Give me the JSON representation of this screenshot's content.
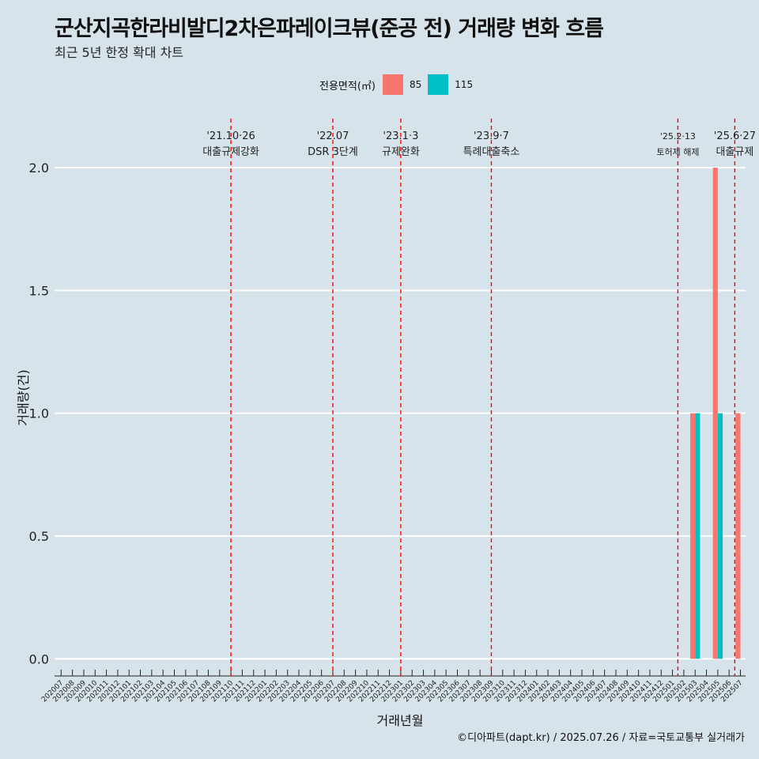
{
  "title": "군산지곡한라비발디2차은파레이크뷰(준공 전) 거래량 변화 흐름",
  "subtitle": "최근 5년 한정 확대 차트",
  "caption": "©디아파트(dapt.kr) / 2025.07.26 / 자료=국토교통부 실거래가",
  "legend": {
    "title": "전용면적(㎡)",
    "items": [
      {
        "label": "85",
        "color": "#f8766d"
      },
      {
        "label": "115",
        "color": "#00bfc4"
      }
    ]
  },
  "chart_data": {
    "type": "bar",
    "title": "군산지곡한라비발디2차은파레이크뷰(준공 전) 거래량 변화 흐름",
    "xlabel": "거래년월",
    "ylabel": "거래량(건)",
    "ylim": [
      -0.07,
      2.2
    ],
    "yticks": [
      0.0,
      0.5,
      1.0,
      1.5,
      2.0
    ],
    "ytick_labels": [
      "0.0",
      "0.5",
      "1.0",
      "1.5",
      "2.0"
    ],
    "grid": "horizontal",
    "legend_position": "top",
    "categories": [
      "202007",
      "202008",
      "202009",
      "202010",
      "202011",
      "202012",
      "202101",
      "202102",
      "202103",
      "202104",
      "202105",
      "202106",
      "202107",
      "202108",
      "202109",
      "202110",
      "202111",
      "202112",
      "202201",
      "202202",
      "202203",
      "202204",
      "202205",
      "202206",
      "202207",
      "202208",
      "202209",
      "202210",
      "202211",
      "202212",
      "202301",
      "202302",
      "202303",
      "202304",
      "202305",
      "202306",
      "202307",
      "202308",
      "202309",
      "202310",
      "202311",
      "202312",
      "202401",
      "202402",
      "202403",
      "202404",
      "202405",
      "202406",
      "202407",
      "202408",
      "202409",
      "202410",
      "202411",
      "202412",
      "202501",
      "202502",
      "202503",
      "202504",
      "202505",
      "202506",
      "202507"
    ],
    "bars": [
      {
        "x": "202503",
        "series": "85",
        "value": 1
      },
      {
        "x": "202503",
        "series": "115",
        "value": 1
      },
      {
        "x": "202505",
        "series": "85",
        "value": 2
      },
      {
        "x": "202505",
        "series": "115",
        "value": 1
      },
      {
        "x": "202507",
        "series": "85",
        "value": 1
      }
    ],
    "events": [
      {
        "x": "202110",
        "date": "'21.10·26",
        "label": "대출규제강화"
      },
      {
        "x": "202207",
        "date": "'22.07",
        "label": "DSR 3단계"
      },
      {
        "x": "202301",
        "date": "'23.1·3",
        "label": "규제완화"
      },
      {
        "x": "202309",
        "date": "'23.9·7",
        "label": "특례대출축소"
      },
      {
        "x": "202502",
        "date": "'25.2·13",
        "label": "토허제 해제"
      },
      {
        "x": "202506",
        "date": "'25.6·27",
        "label": "대출규제"
      }
    ],
    "colors": {
      "85": "#f8766d",
      "115": "#00bfc4",
      "event_line": "#ff0000"
    }
  }
}
